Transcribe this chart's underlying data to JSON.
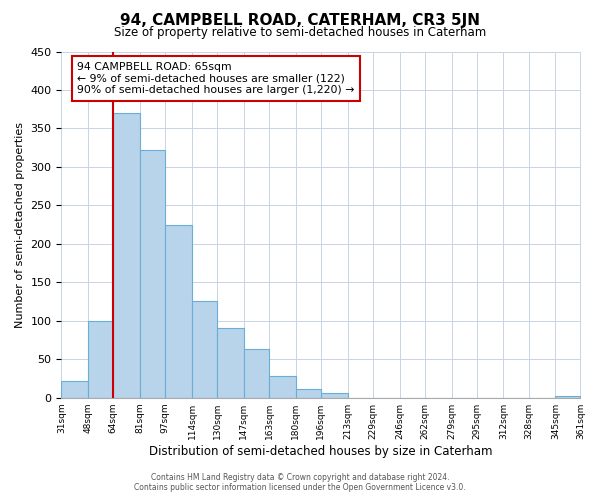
{
  "title": "94, CAMPBELL ROAD, CATERHAM, CR3 5JN",
  "subtitle": "Size of property relative to semi-detached houses in Caterham",
  "xlabel": "Distribution of semi-detached houses by size in Caterham",
  "ylabel": "Number of semi-detached properties",
  "footer_line1": "Contains HM Land Registry data © Crown copyright and database right 2024.",
  "footer_line2": "Contains public sector information licensed under the Open Government Licence v3.0.",
  "bar_color": "#b8d4ea",
  "bar_edge_color": "#6aaed6",
  "marker_color": "#cc0000",
  "annotation_title": "94 CAMPBELL ROAD: 65sqm",
  "annotation_line1": "← 9% of semi-detached houses are smaller (122)",
  "annotation_line2": "90% of semi-detached houses are larger (1,220) →",
  "bin_edges": [
    31,
    48,
    64,
    81,
    97,
    114,
    130,
    147,
    163,
    180,
    196,
    213,
    229,
    246,
    262,
    279,
    295,
    312,
    328,
    345,
    361
  ],
  "bin_labels": [
    "31sqm",
    "48sqm",
    "64sqm",
    "81sqm",
    "97sqm",
    "114sqm",
    "130sqm",
    "147sqm",
    "163sqm",
    "180sqm",
    "196sqm",
    "213sqm",
    "229sqm",
    "246sqm",
    "262sqm",
    "279sqm",
    "295sqm",
    "312sqm",
    "328sqm",
    "345sqm",
    "361sqm"
  ],
  "counts": [
    22,
    100,
    370,
    322,
    225,
    126,
    90,
    63,
    28,
    11,
    6,
    0,
    0,
    0,
    0,
    0,
    0,
    0,
    0,
    2
  ],
  "marker_bin_index": 2,
  "ylim": [
    0,
    450
  ],
  "yticks": [
    0,
    50,
    100,
    150,
    200,
    250,
    300,
    350,
    400,
    450
  ],
  "background_color": "#ffffff",
  "grid_color": "#c8d4e4"
}
